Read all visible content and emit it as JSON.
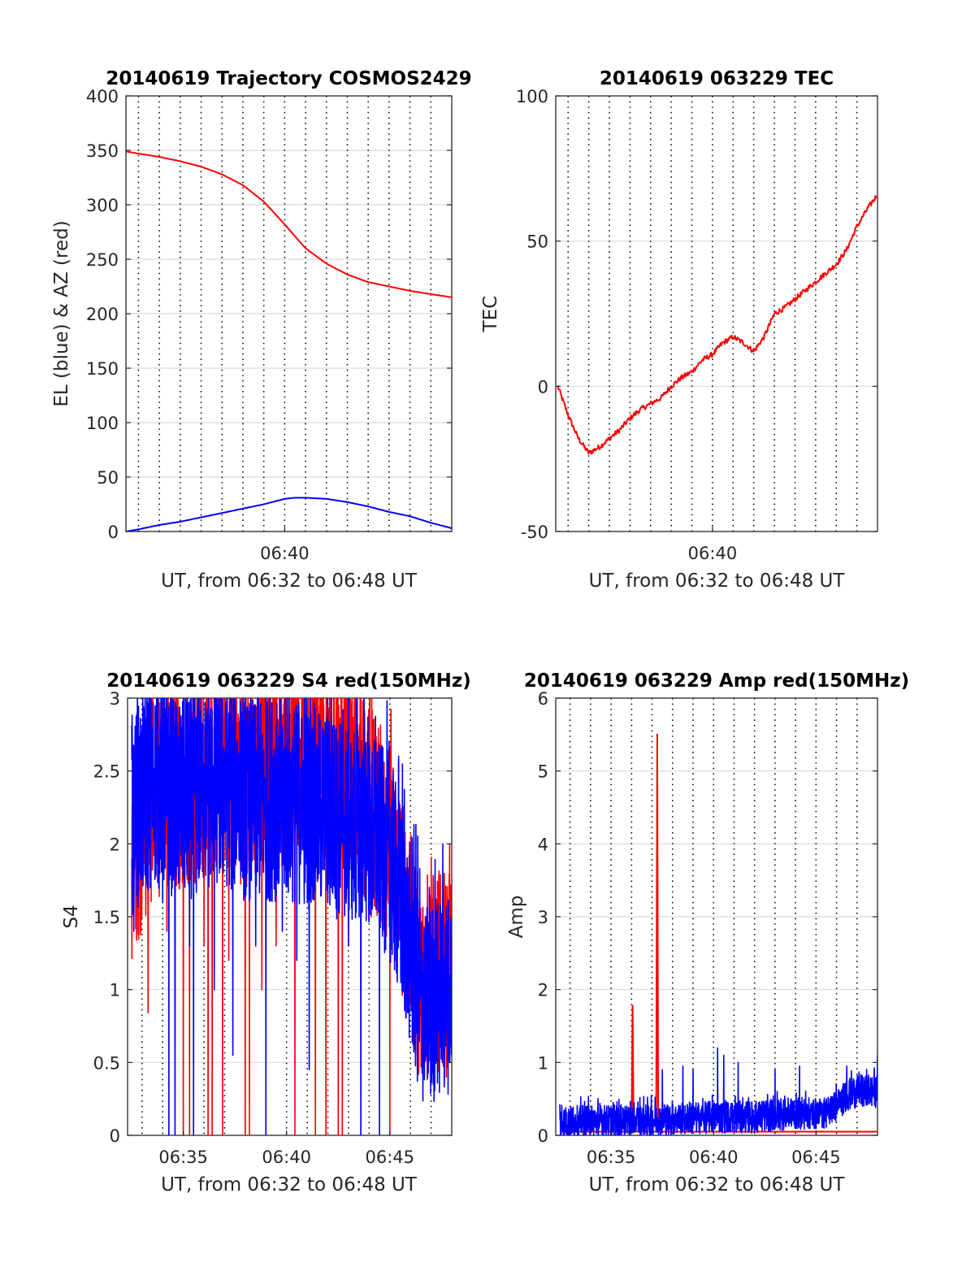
{
  "chart_data": [
    {
      "type": "line",
      "title": "20140619 Trajectory COSMOS2429",
      "xlabel": "UT, from 06:32 to 06:48 UT",
      "ylabel": "EL (blue) & AZ (red)",
      "x_unit": "minutes after 06:00 UT",
      "xlim": [
        32.4,
        48.0
      ],
      "ylim": [
        0,
        400
      ],
      "yticks": [
        0,
        50,
        100,
        150,
        200,
        250,
        300,
        350,
        400
      ],
      "xticks": [
        40
      ],
      "xticklabels": [
        "06:40"
      ],
      "vgrid_minutes": [
        33,
        34,
        35,
        36,
        37,
        38,
        39,
        40,
        41,
        42,
        43,
        44,
        45,
        46,
        47
      ],
      "grid": "horizontal solid, vertical dotted",
      "series": [
        {
          "color": "#ff0000",
          "x": [
            32.4,
            33,
            34,
            35,
            36,
            37,
            38,
            39,
            40,
            40.5,
            41,
            42,
            43,
            44,
            45,
            46,
            47,
            48
          ],
          "y": [
            349,
            347,
            344,
            340,
            335,
            328,
            318,
            303,
            282,
            271,
            260,
            246,
            236,
            229,
            225,
            221,
            218,
            215
          ]
        },
        {
          "color": "#0000ff",
          "x": [
            32.4,
            33,
            34,
            35,
            36,
            37,
            38,
            39,
            40,
            40.5,
            41,
            42,
            43,
            44,
            45,
            46,
            47,
            48
          ],
          "y": [
            0,
            2,
            6,
            9,
            13,
            17,
            21,
            25,
            30,
            31,
            31,
            30,
            27,
            23,
            18,
            14,
            8,
            3
          ]
        }
      ]
    },
    {
      "type": "line",
      "title": "20140619 063229 TEC",
      "xlabel": "UT, from 06:32 to 06:48 UT",
      "ylabel": "TEC",
      "x_unit": "minutes after 06:00 UT",
      "xlim": [
        32.4,
        48.0
      ],
      "ylim": [
        -50,
        100
      ],
      "yticks": [
        -50,
        0,
        50,
        100
      ],
      "xticks": [
        40
      ],
      "xticklabels": [
        "06:40"
      ],
      "vgrid_minutes": [
        33,
        34,
        35,
        36,
        37,
        38,
        39,
        40,
        41,
        42,
        43,
        44,
        45,
        46,
        47
      ],
      "grid": "horizontal solid, vertical dotted",
      "series": [
        {
          "color": "#ff0000",
          "noise": 0.9,
          "x": [
            32.5,
            33.0,
            33.5,
            34.0,
            34.5,
            35.0,
            35.5,
            36.0,
            36.5,
            37.0,
            37.5,
            38.0,
            38.5,
            39.0,
            39.5,
            40.0,
            40.5,
            41.0,
            41.5,
            42.0,
            42.5,
            43.0,
            43.5,
            44.0,
            44.5,
            45.0,
            45.5,
            46.0,
            46.5,
            47.0,
            47.5,
            48.0
          ],
          "y": [
            0,
            -10,
            -18,
            -23,
            -21,
            -18,
            -15,
            -11,
            -8,
            -6,
            -4,
            0,
            3,
            5,
            9,
            11,
            15,
            17,
            15,
            12,
            17,
            25,
            27,
            30,
            33,
            36,
            39,
            42,
            47,
            55,
            61,
            66
          ]
        }
      ]
    },
    {
      "type": "line",
      "title": "20140619 063229 S4 red(150MHz)",
      "xlabel": "UT, from 06:32 to 06:48 UT",
      "ylabel": "S4",
      "x_unit": "minutes after 06:00 UT",
      "xlim": [
        32.3,
        48.0
      ],
      "ylim": [
        0,
        3
      ],
      "yticks": [
        0,
        0.5,
        1,
        1.5,
        2,
        2.5,
        3
      ],
      "xticks": [
        35,
        40,
        45
      ],
      "xticklabels": [
        "06:35",
        "06:40",
        "06:45"
      ],
      "vgrid_minutes": [
        33,
        34,
        35,
        36,
        37,
        38,
        39,
        40,
        41,
        42,
        43,
        44,
        45,
        46,
        47
      ],
      "grid": "horizontal solid, vertical dotted",
      "series": [
        {
          "color": "#ff0000",
          "style": "noisy",
          "envelope_x": [
            32.5,
            33.5,
            35,
            37,
            38,
            40,
            42,
            44,
            45,
            46,
            46.5,
            47,
            48
          ],
          "envelope_y": [
            1.9,
            2.3,
            2.4,
            2.5,
            2.4,
            2.5,
            2.6,
            2.3,
            2.0,
            1.4,
            1.0,
            1.1,
            1.1
          ],
          "spread": 0.7,
          "dropouts": [
            35.0,
            35.3,
            36.2,
            36.4,
            36.9,
            38.0,
            38.2,
            39.5,
            40.4,
            41.4,
            41.9,
            42.5,
            42.7,
            45.0
          ],
          "highlight_x": [
            32.5,
            33.0,
            33.3,
            34.2,
            36.0,
            37.2,
            38.8,
            39.5,
            40.1,
            41.1,
            41.5,
            42.2,
            43.0,
            44.1,
            44.7,
            45.3,
            46.0,
            47.0,
            47.9
          ],
          "highlight_y": [
            1.9,
            1.8,
            0.84,
            1.4,
            1.3,
            1.2,
            1.0,
            1.3,
            2.2,
            1.8,
            2.7,
            2.0,
            1.4,
            1.5,
            1.6,
            1.5,
            1.3,
            1.2,
            2.0
          ]
        },
        {
          "color": "#0000ff",
          "style": "noisy",
          "envelope_x": [
            32.5,
            33.5,
            35,
            37,
            38,
            40,
            42,
            44,
            45,
            45.5,
            46,
            46.5,
            47,
            48
          ],
          "envelope_y": [
            2.2,
            2.4,
            2.3,
            2.4,
            2.3,
            2.3,
            2.2,
            2.1,
            1.9,
            1.6,
            1.3,
            0.9,
            0.9,
            1.0
          ],
          "spread": 0.7,
          "dropouts": [
            34.3,
            34.6,
            35.5,
            37.4,
            39.0,
            41.1,
            43.6,
            44.5
          ],
          "highlight_x": [
            32.6,
            33.4,
            34.0,
            35.3,
            36.5,
            37.4,
            38.5,
            39.8,
            40.5,
            41.1,
            42.0,
            43.0,
            44.2,
            45.0,
            45.6,
            46.3,
            47.2,
            47.9
          ],
          "highlight_y": [
            1.4,
            1.7,
            1.6,
            1.3,
            1.0,
            0.55,
            1.3,
            1.4,
            1.2,
            0.45,
            1.6,
            1.3,
            1.7,
            1.4,
            1.7,
            0.7,
            1.3,
            1.1
          ]
        }
      ]
    },
    {
      "type": "line",
      "title": "20140619 063229 Amp red(150MHz)",
      "xlabel": "UT, from 06:32 to 06:48 UT",
      "ylabel": "Amp",
      "x_unit": "minutes after 06:00 UT",
      "xlim": [
        32.3,
        48.0
      ],
      "ylim": [
        0,
        6
      ],
      "yticks": [
        0,
        1,
        2,
        3,
        4,
        5,
        6
      ],
      "xticks": [
        35,
        40,
        45
      ],
      "xticklabels": [
        "06:35",
        "06:40",
        "06:45"
      ],
      "vgrid_minutes": [
        33,
        34,
        35,
        36,
        37,
        38,
        39,
        40,
        41,
        42,
        43,
        44,
        45,
        46,
        47
      ],
      "grid": "horizontal solid, vertical dotted",
      "series": [
        {
          "color": "#ff0000",
          "style": "spikes",
          "x": [
            32.5,
            36.0,
            36.05,
            36.1,
            37.2,
            37.25,
            37.3,
            38.0,
            48.0
          ],
          "y": [
            0.05,
            0.05,
            1.78,
            0.05,
            0.05,
            5.5,
            0.05,
            0.05,
            0.05
          ]
        },
        {
          "color": "#0000ff",
          "style": "noisy",
          "envelope_x": [
            32.5,
            34,
            36,
            38,
            40,
            42,
            43,
            44,
            45,
            45.5,
            46,
            46.5,
            47,
            48
          ],
          "envelope_y": [
            0.18,
            0.2,
            0.2,
            0.22,
            0.25,
            0.25,
            0.28,
            0.3,
            0.3,
            0.32,
            0.4,
            0.55,
            0.6,
            0.6
          ],
          "spread": 0.22,
          "peaks_x": [
            37.5,
            38.5,
            39.0,
            40.2,
            40.5,
            41.2,
            43.0,
            44.2,
            46.5,
            48.0
          ],
          "peaks_y": [
            0.9,
            0.95,
            0.9,
            1.2,
            1.1,
            1.0,
            0.9,
            0.95,
            0.95,
            1.1
          ]
        }
      ]
    }
  ]
}
